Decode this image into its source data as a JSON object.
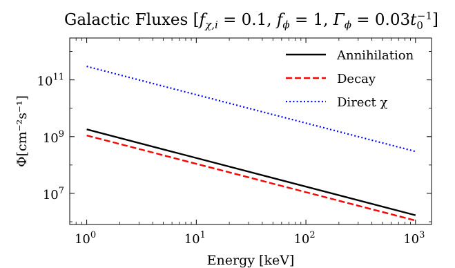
{
  "chart_data": {
    "type": "line",
    "title": "Galactic Fluxes",
    "title_params": [
      {
        "symbol": "f",
        "sub": "χ,i",
        "value": "0.1"
      },
      {
        "symbol": "f",
        "sub": "ϕ",
        "value": "1"
      },
      {
        "symbol": "Γ",
        "sub": "ϕ",
        "value": "0.03",
        "unit": "t",
        "unit_sub": "0",
        "unit_sup": "−1"
      }
    ],
    "xlabel": "Energy [keV]",
    "ylabel": "Φ[cm⁻²s⁻¹]",
    "x_scale": "log",
    "y_scale": "log",
    "xlim": [
      0.7,
      1400
    ],
    "ylim": [
      800000,
      3000000000000
    ],
    "x_ticks": [
      {
        "value": 1,
        "label": "10",
        "exp": "0"
      },
      {
        "value": 10,
        "label": "10",
        "exp": "1"
      },
      {
        "value": 100,
        "label": "10",
        "exp": "2"
      },
      {
        "value": 1000,
        "label": "10",
        "exp": "3"
      }
    ],
    "y_ticks": [
      {
        "value": 10000000,
        "label": "10",
        "exp": "7"
      },
      {
        "value": 1000000000,
        "label": "10",
        "exp": "9"
      },
      {
        "value": 100000000000,
        "label": "10",
        "exp": "11"
      }
    ],
    "legend_position": "top-right",
    "grid": false,
    "series": [
      {
        "name": "Annihilation",
        "color": "#000000",
        "dash": "solid",
        "x": [
          1,
          1000
        ],
        "y": [
          1800000000,
          1700000
        ]
      },
      {
        "name": "Decay",
        "color": "#ff0000",
        "dash": "dashed",
        "x": [
          1,
          1000
        ],
        "y": [
          1100000000,
          1100000
        ]
      },
      {
        "name": "Direct χ",
        "color": "#0000ff",
        "dash": "dotted",
        "x": [
          1,
          1000
        ],
        "y": [
          300000000000,
          300000000
        ]
      }
    ]
  }
}
